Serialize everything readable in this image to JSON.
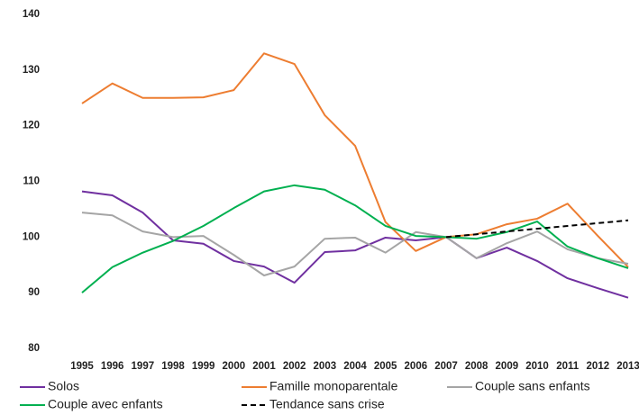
{
  "chart_data": {
    "type": "line",
    "categories": [
      "1995",
      "1996",
      "1997",
      "1998",
      "1999",
      "2000",
      "2001",
      "2002",
      "2003",
      "2004",
      "2005",
      "2006",
      "2007",
      "2008",
      "2009",
      "2010",
      "2011",
      "2012",
      "2013"
    ],
    "series": [
      {
        "name": "Solos",
        "color": "#7030a0",
        "values": [
          108.2,
          107.5,
          104.4,
          99.4,
          98.8,
          95.7,
          94.7,
          91.8,
          97.3,
          97.6,
          99.9,
          99.4,
          100,
          96.2,
          98.1,
          95.7,
          92.6,
          90.8,
          89.1
        ]
      },
      {
        "name": "Famille monoparentale",
        "color": "#ed7d31",
        "values": [
          124,
          127.6,
          125,
          125,
          125.1,
          126.4,
          133,
          131.1,
          121.9,
          116.4,
          102.7,
          97.5,
          100,
          100.5,
          102.3,
          103.3,
          106,
          100.2,
          94.6
        ]
      },
      {
        "name": "Couple sans enfants",
        "color": "#a5a5a5",
        "values": [
          104.4,
          103.9,
          101,
          100,
          100.2,
          96.8,
          93.1,
          94.7,
          99.7,
          99.9,
          97.2,
          100.9,
          100,
          96.2,
          98.9,
          101,
          97.8,
          96.2,
          95.2
        ]
      },
      {
        "name": "Couple avec enfants",
        "color": "#00b050",
        "values": [
          90,
          94.6,
          97.2,
          99.3,
          102,
          105.2,
          108.2,
          109.3,
          108.5,
          105.7,
          102,
          100.2,
          100,
          99.7,
          100.9,
          102.8,
          98.3,
          96.2,
          94.4
        ]
      },
      {
        "name": "Tendance sans crise",
        "color": "#000000",
        "dashed": true,
        "values": [
          null,
          null,
          null,
          null,
          null,
          null,
          null,
          null,
          null,
          null,
          null,
          null,
          100,
          100.5,
          101,
          101.5,
          102,
          102.5,
          103
        ]
      }
    ],
    "ylim": [
      80,
      140
    ],
    "yticks": [
      80,
      90,
      100,
      110,
      120,
      130,
      140
    ],
    "grid": false
  }
}
